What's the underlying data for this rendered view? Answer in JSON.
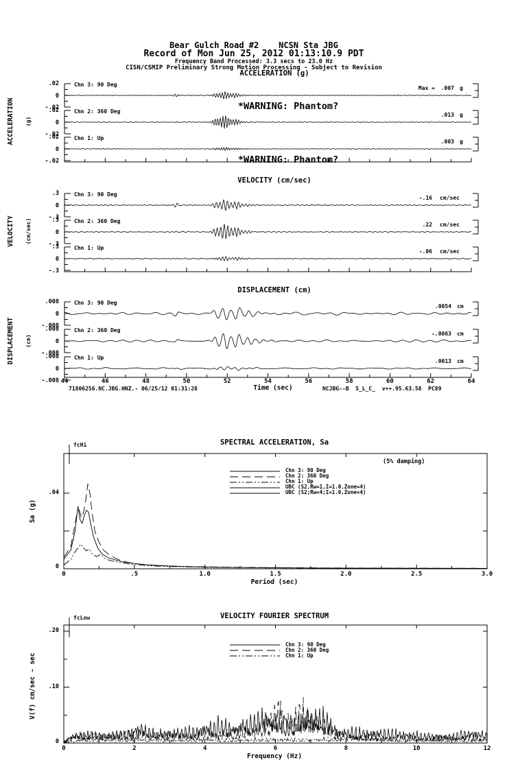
{
  "header": {
    "line1": "Bear Gulch Road #2    NCSN Sta JBG",
    "line2": "Record of Mon Jun 25, 2012 01:13:10.9 PDT",
    "line3": "Frequency Band Processed: 3.3 secs to 23.0 Hz",
    "line4": "CISN/CSMIP Preliminary Strong Motion Processing - Subject to Revision"
  },
  "time_axis": {
    "label": "Time (sec)",
    "range": [
      44,
      64
    ],
    "ticks": [
      "44",
      "46",
      "48",
      "50",
      "52",
      "54",
      "56",
      "58",
      "60",
      "62",
      "64"
    ]
  },
  "footer": {
    "left": "71806256.NC.JBG.HNZ.- 06/25/12 01:31:28",
    "right": "NCJBG--B  S_L_C_  v++.95.63.58  PC89"
  },
  "ink": "#000000",
  "chart_data": [
    {
      "id": "acceleration",
      "type": "line",
      "title": "ACCELERATION (g)",
      "side_label": "ACCELERATION",
      "side_unit": "(g)",
      "ylim": [
        -0.02,
        0.02
      ],
      "yticks": [
        ".02",
        "0",
        "-.02"
      ],
      "x_range_sec": [
        44,
        64
      ],
      "series": [
        {
          "name": "Chn 3: 90 Deg",
          "max_prefix": "Max =",
          "value": 0.007,
          "value_text": ".007",
          "unit": "g",
          "warning": "*WARNING: Phantom?",
          "gen": {
            "seed": 31,
            "noise": 0.045,
            "peak": 0.35,
            "freq": 7.5,
            "pre": 0.12,
            "wr": 0.9,
            "bgf": [
              3,
              7
            ]
          }
        },
        {
          "name": "Chn 2: 360 Deg",
          "value": 0.013,
          "value_text": ".013",
          "unit": "g",
          "gen": {
            "seed": 32,
            "noise": 0.045,
            "peak": 0.65,
            "freq": 7.8,
            "pre": 0.05,
            "wr": 0.8,
            "bgf": [
              3,
              7
            ]
          }
        },
        {
          "name": "Chn 1: Up",
          "value": 0.003,
          "value_text": ".003",
          "unit": "g",
          "warning": "*WARNING: Phantom?",
          "gen": {
            "seed": 33,
            "noise": 0.035,
            "peak": 0.15,
            "freq": 8.5,
            "pre": 0.03,
            "wr": 1.0,
            "bgf": [
              3,
              7
            ]
          }
        }
      ]
    },
    {
      "id": "velocity",
      "type": "line",
      "title": "VELOCITY (cm/sec)",
      "side_label": "VELOCITY",
      "side_unit": "(cm/sec)",
      "ylim": [
        -0.3,
        0.3
      ],
      "yticks": [
        ".3",
        "0",
        "-.3"
      ],
      "x_range_sec": [
        44,
        64
      ],
      "series": [
        {
          "name": "Chn 3: 90 Deg",
          "value": -0.16,
          "value_text": "-.16",
          "unit": "cm/sec",
          "gen": {
            "seed": 41,
            "noise": 0.06,
            "peak": 0.5,
            "freq": 5.5,
            "pre": 0.17,
            "wr": 1.1,
            "bgf": [
              2,
              5
            ]
          }
        },
        {
          "name": "Chn 2: 360 Deg",
          "value": 0.22,
          "value_text": ".22",
          "unit": "cm/sec",
          "gen": {
            "seed": 42,
            "noise": 0.05,
            "peak": 0.73,
            "freq": 5.8,
            "pre": 0.06,
            "wr": 1.0,
            "bgf": [
              2,
              5
            ]
          }
        },
        {
          "name": "Chn 1: Up",
          "value": -0.06,
          "value_text": "-.06",
          "unit": "cm/sec",
          "gen": {
            "seed": 43,
            "noise": 0.05,
            "peak": 0.2,
            "freq": 6.2,
            "pre": 0.05,
            "wr": 1.2,
            "bgf": [
              2,
              5
            ]
          }
        }
      ]
    },
    {
      "id": "displacement",
      "type": "line",
      "title": "DISPLACEMENT (cm)",
      "side_label": "DISPLACEMENT",
      "side_unit": "(cm)",
      "ylim": [
        -0.008,
        0.008
      ],
      "yticks": [
        ".008",
        "0",
        "-.008"
      ],
      "x_range_sec": [
        44,
        64
      ],
      "series": [
        {
          "name": "Chn 3: 90 Deg",
          "value": 0.0054,
          "value_text": ".0054",
          "unit": "cm",
          "gen": {
            "seed": 51,
            "noise": 0.17,
            "peak": 0.64,
            "freq": 2.3,
            "pre": 0.25,
            "wr": 1.6,
            "bgf": [
              0.6,
              1.8
            ]
          }
        },
        {
          "name": "Chn 2: 360 Deg",
          "value": -0.0063,
          "value_text": "-.0063",
          "unit": "cm",
          "gen": {
            "seed": 52,
            "noise": 0.12,
            "peak": 0.76,
            "freq": 2.5,
            "pre": 0.12,
            "wr": 1.6,
            "bgf": [
              0.6,
              1.8
            ]
          }
        },
        {
          "name": "Chn 1: Up",
          "value": 0.0013,
          "value_text": ".0013",
          "unit": "cm",
          "gen": {
            "seed": 53,
            "noise": 0.09,
            "peak": 0.16,
            "freq": 2.8,
            "pre": 0.06,
            "wr": 1.4,
            "bgf": [
              0.6,
              1.8
            ]
          }
        }
      ]
    },
    {
      "id": "spectral_acceleration",
      "type": "line",
      "title": "SPECTRAL ACCELERATION, Sa",
      "annotation": "(5% damping)",
      "marker": "fcHi",
      "xlabel": "Period (sec)",
      "ylabel": "Sa (g)",
      "xlim": [
        0,
        3.0
      ],
      "ylim": [
        0,
        0.061
      ],
      "xtick_labels": [
        "0",
        ".5",
        "1.0",
        "1.5",
        "2.0",
        "2.5",
        "3.0"
      ],
      "ytick_labels": [
        ".04",
        "0"
      ],
      "legend": [
        {
          "label": "Chn 3: 90 Deg",
          "dash": ""
        },
        {
          "label": "Chn 2: 360 Deg",
          "dash": "12,6"
        },
        {
          "label": "Chn 1: Up",
          "dash": "10,3,2,3,2,3"
        },
        {
          "label": "UBC (S2,Rw=1,I=1.0,Zone=4)",
          "dash": ""
        },
        {
          "label": "UBC (S2;Rw=4;I=1.0,Zone=4)",
          "dash": ""
        }
      ],
      "series": [
        {
          "name": "Chn 3: 90 Deg",
          "dash": "",
          "points": [
            [
              0,
              0.005
            ],
            [
              0.05,
              0.01
            ],
            [
              0.08,
              0.02
            ],
            [
              0.1,
              0.033
            ],
            [
              0.115,
              0.026
            ],
            [
              0.13,
              0.024
            ],
            [
              0.145,
              0.028
            ],
            [
              0.16,
              0.031
            ],
            [
              0.175,
              0.03
            ],
            [
              0.19,
              0.024
            ],
            [
              0.21,
              0.017
            ],
            [
              0.24,
              0.011
            ],
            [
              0.27,
              0.008
            ],
            [
              0.31,
              0.006
            ],
            [
              0.36,
              0.0048
            ],
            [
              0.42,
              0.0036
            ],
            [
              0.5,
              0.0028
            ],
            [
              0.6,
              0.002
            ],
            [
              0.75,
              0.0015
            ],
            [
              0.9,
              0.0011
            ],
            [
              1.1,
              0.0008
            ],
            [
              1.4,
              0.0006
            ],
            [
              1.8,
              0.0004
            ],
            [
              2.3,
              0.0003
            ],
            [
              3.0,
              0.0002
            ]
          ]
        },
        {
          "name": "Chn 2: 360 Deg",
          "dash": "12,6",
          "points": [
            [
              0,
              0.006
            ],
            [
              0.05,
              0.012
            ],
            [
              0.07,
              0.02
            ],
            [
              0.09,
              0.028
            ],
            [
              0.11,
              0.031
            ],
            [
              0.125,
              0.027
            ],
            [
              0.14,
              0.03
            ],
            [
              0.155,
              0.036
            ],
            [
              0.17,
              0.045
            ],
            [
              0.185,
              0.04
            ],
            [
              0.2,
              0.03
            ],
            [
              0.22,
              0.02
            ],
            [
              0.25,
              0.014
            ],
            [
              0.28,
              0.01
            ],
            [
              0.32,
              0.0075
            ],
            [
              0.36,
              0.0058
            ],
            [
              0.4,
              0.0045
            ],
            [
              0.45,
              0.0035
            ],
            [
              0.5,
              0.0028
            ],
            [
              0.6,
              0.002
            ],
            [
              0.7,
              0.0016
            ],
            [
              0.85,
              0.0012
            ],
            [
              1.0,
              0.001
            ],
            [
              1.3,
              0.0007
            ],
            [
              1.6,
              0.0005
            ],
            [
              2.0,
              0.0004
            ],
            [
              2.5,
              0.0003
            ],
            [
              3.0,
              0.0002
            ]
          ]
        },
        {
          "name": "Chn 1: Up",
          "dash": "10,3,2,3,2,3",
          "points": [
            [
              0,
              0.002
            ],
            [
              0.05,
              0.005
            ],
            [
              0.08,
              0.009
            ],
            [
              0.1,
              0.011
            ],
            [
              0.12,
              0.013
            ],
            [
              0.14,
              0.011
            ],
            [
              0.16,
              0.0095
            ],
            [
              0.18,
              0.0105
            ],
            [
              0.2,
              0.008
            ],
            [
              0.23,
              0.0065
            ],
            [
              0.26,
              0.0075
            ],
            [
              0.3,
              0.005
            ],
            [
              0.35,
              0.004
            ],
            [
              0.42,
              0.003
            ],
            [
              0.5,
              0.0022
            ],
            [
              0.6,
              0.0016
            ],
            [
              0.75,
              0.0012
            ],
            [
              1.0,
              0.0008
            ],
            [
              1.4,
              0.0005
            ],
            [
              2.0,
              0.0003
            ],
            [
              3.0,
              0.0002
            ]
          ]
        }
      ]
    },
    {
      "id": "velocity_fourier_spectrum",
      "type": "line",
      "title": "VELOCITY FOURIER SPECTRUM",
      "marker": "fcLow",
      "xlabel": "Frequency (Hz)",
      "ylabel": "V(f)  cm/sec - sec",
      "xlim": [
        0,
        12
      ],
      "ylim": [
        0,
        0.211
      ],
      "xtick_labels": [
        "0",
        "2",
        "4",
        "6",
        "8",
        "10",
        "12"
      ],
      "ytick_labels": [
        ".20",
        ".10",
        "0"
      ],
      "legend": [
        {
          "label": "Chn 3: 90 Deg",
          "dash": ""
        },
        {
          "label": "Chn 2: 360 Deg",
          "dash": "12,6"
        },
        {
          "label": "Chn 1: Up",
          "dash": "10,3,2,3,2,3"
        }
      ],
      "series": [
        {
          "name": "Chn 3: 90 Deg",
          "dash": "",
          "seed": 71,
          "envelope": [
            [
              0,
              0.004
            ],
            [
              0.3,
              0.018
            ],
            [
              0.7,
              0.022
            ],
            [
              1.2,
              0.018
            ],
            [
              1.8,
              0.022
            ],
            [
              2.2,
              0.035
            ],
            [
              2.6,
              0.022
            ],
            [
              3.2,
              0.025
            ],
            [
              3.8,
              0.028
            ],
            [
              4.4,
              0.045
            ],
            [
              4.8,
              0.035
            ],
            [
              5.3,
              0.05
            ],
            [
              5.7,
              0.062
            ],
            [
              6.0,
              0.045
            ],
            [
              6.4,
              0.042
            ],
            [
              6.8,
              0.058
            ],
            [
              7.2,
              0.062
            ],
            [
              7.5,
              0.055
            ],
            [
              7.8,
              0.025
            ],
            [
              8.2,
              0.028
            ],
            [
              8.6,
              0.022
            ],
            [
              9.2,
              0.025
            ],
            [
              9.6,
              0.022
            ],
            [
              10.2,
              0.018
            ],
            [
              10.8,
              0.015
            ],
            [
              11.3,
              0.022
            ],
            [
              11.7,
              0.024
            ],
            [
              12,
              0.018
            ]
          ]
        },
        {
          "name": "Chn 2: 360 Deg",
          "dash": "12,6",
          "seed": 72,
          "envelope": [
            [
              0,
              0.004
            ],
            [
              0.4,
              0.018
            ],
            [
              0.9,
              0.016
            ],
            [
              1.5,
              0.018
            ],
            [
              2.1,
              0.022
            ],
            [
              2.7,
              0.018
            ],
            [
              3.3,
              0.02
            ],
            [
              4.0,
              0.018
            ],
            [
              4.6,
              0.025
            ],
            [
              5.2,
              0.028
            ],
            [
              5.6,
              0.038
            ],
            [
              5.9,
              0.055
            ],
            [
              6.1,
              0.095
            ],
            [
              6.25,
              0.06
            ],
            [
              6.5,
              0.05
            ],
            [
              6.75,
              0.072
            ],
            [
              7.0,
              0.055
            ],
            [
              7.3,
              0.045
            ],
            [
              7.6,
              0.03
            ],
            [
              8.0,
              0.014
            ],
            [
              8.5,
              0.016
            ],
            [
              9.0,
              0.013
            ],
            [
              9.5,
              0.012
            ],
            [
              10.0,
              0.01
            ],
            [
              10.5,
              0.012
            ],
            [
              11.0,
              0.014
            ],
            [
              11.5,
              0.013
            ],
            [
              12,
              0.012
            ]
          ]
        },
        {
          "name": "Chn 1: Up",
          "dash": "10,3,2,3,2,3",
          "seed": 73,
          "envelope": [
            [
              0,
              0.002
            ],
            [
              0.5,
              0.007
            ],
            [
              1,
              0.009
            ],
            [
              2,
              0.008
            ],
            [
              3,
              0.007
            ],
            [
              4,
              0.008
            ],
            [
              5,
              0.008
            ],
            [
              6,
              0.009
            ],
            [
              7,
              0.008
            ],
            [
              7.8,
              0.01
            ],
            [
              8.3,
              0.013
            ],
            [
              9,
              0.008
            ],
            [
              10,
              0.006
            ],
            [
              11,
              0.007
            ],
            [
              12,
              0.007
            ]
          ]
        }
      ]
    }
  ]
}
